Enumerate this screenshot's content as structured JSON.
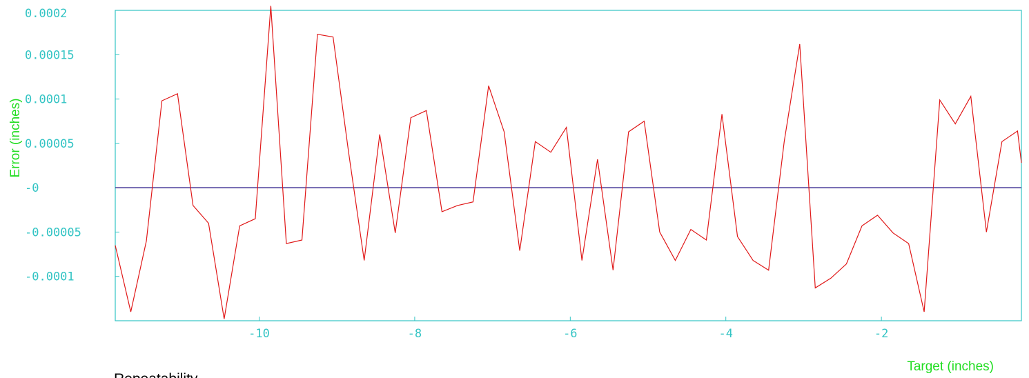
{
  "chart_data": {
    "type": "line",
    "title": "Repeatability",
    "xlabel": "Target (inches)",
    "ylabel": "Error (inches)",
    "xlim": [
      -11.85,
      -0.2
    ],
    "ylim": [
      -0.00015,
      0.0002
    ],
    "x_ticks": [
      -10,
      -8,
      -6,
      -4,
      -2
    ],
    "x_tick_labels": [
      "-10",
      "-8",
      "-6",
      "-4",
      "-2"
    ],
    "y_ticks": [
      0.0002,
      0.00015,
      0.0001,
      5e-05,
      0,
      -5e-05,
      -0.0001
    ],
    "y_tick_labels": [
      "0.0002",
      "0.00015",
      "0.0001",
      "0.00005",
      "-0",
      "-0.00005",
      "-0.0001"
    ],
    "grid": false,
    "colors": {
      "frame": "#33c4c4",
      "tick_text": "#33c4c4",
      "axis_title": "#22dd22",
      "series": "#e01818",
      "zero_line": "#4a3d9a",
      "title": "#000000"
    },
    "zero_line": 0,
    "series": [
      {
        "x": [
          -11.85,
          -11.65,
          -11.45,
          -11.25,
          -11.05,
          -10.85,
          -10.65,
          -10.45,
          -10.25,
          -10.05,
          -9.85,
          -9.65,
          -9.45,
          -9.25,
          -9.05,
          -8.85,
          -8.65,
          -8.45,
          -8.25,
          -8.05,
          -7.85,
          -7.65,
          -7.45,
          -7.25,
          -7.05,
          -6.85,
          -6.65,
          -6.45,
          -6.25,
          -6.05,
          -5.85,
          -5.65,
          -5.45,
          -5.25,
          -5.05,
          -4.85,
          -4.65,
          -4.45,
          -4.25,
          -4.05,
          -3.85,
          -3.65,
          -3.45,
          -3.25,
          -3.05,
          -2.85,
          -2.65,
          -2.45,
          -2.25,
          -2.05,
          -1.85,
          -1.65,
          -1.45,
          -1.25,
          -1.05,
          -0.85,
          -0.65,
          -0.45,
          -0.25,
          -0.2
        ],
        "values": [
          -6.5e-05,
          -0.00014,
          -6e-05,
          9.8e-05,
          0.000106,
          -2e-05,
          -4e-05,
          -0.000148,
          -4.3e-05,
          -3.5e-05,
          0.000205,
          -6.3e-05,
          -5.9e-05,
          0.000173,
          0.00017,
          4e-05,
          -8.2e-05,
          6e-05,
          -5.1e-05,
          7.9e-05,
          8.7e-05,
          -2.7e-05,
          -2e-05,
          -1.6e-05,
          0.000115,
          6.3e-05,
          -7.1e-05,
          5.2e-05,
          4e-05,
          6.8e-05,
          -8.2e-05,
          3.2e-05,
          -9.3e-05,
          6.3e-05,
          7.5e-05,
          -5e-05,
          -8.2e-05,
          -4.7e-05,
          -5.9e-05,
          8.3e-05,
          -5.5e-05,
          -8.2e-05,
          -9.3e-05,
          5.2e-05,
          0.000162,
          -0.000113,
          -0.000102,
          -8.6e-05,
          -4.3e-05,
          -3.1e-05,
          -5.1e-05,
          -6.3e-05,
          -0.00014,
          9.9e-05,
          7.2e-05,
          0.000103,
          -5e-05,
          5.2e-05,
          6.4e-05,
          2.8e-05
        ]
      }
    ]
  }
}
